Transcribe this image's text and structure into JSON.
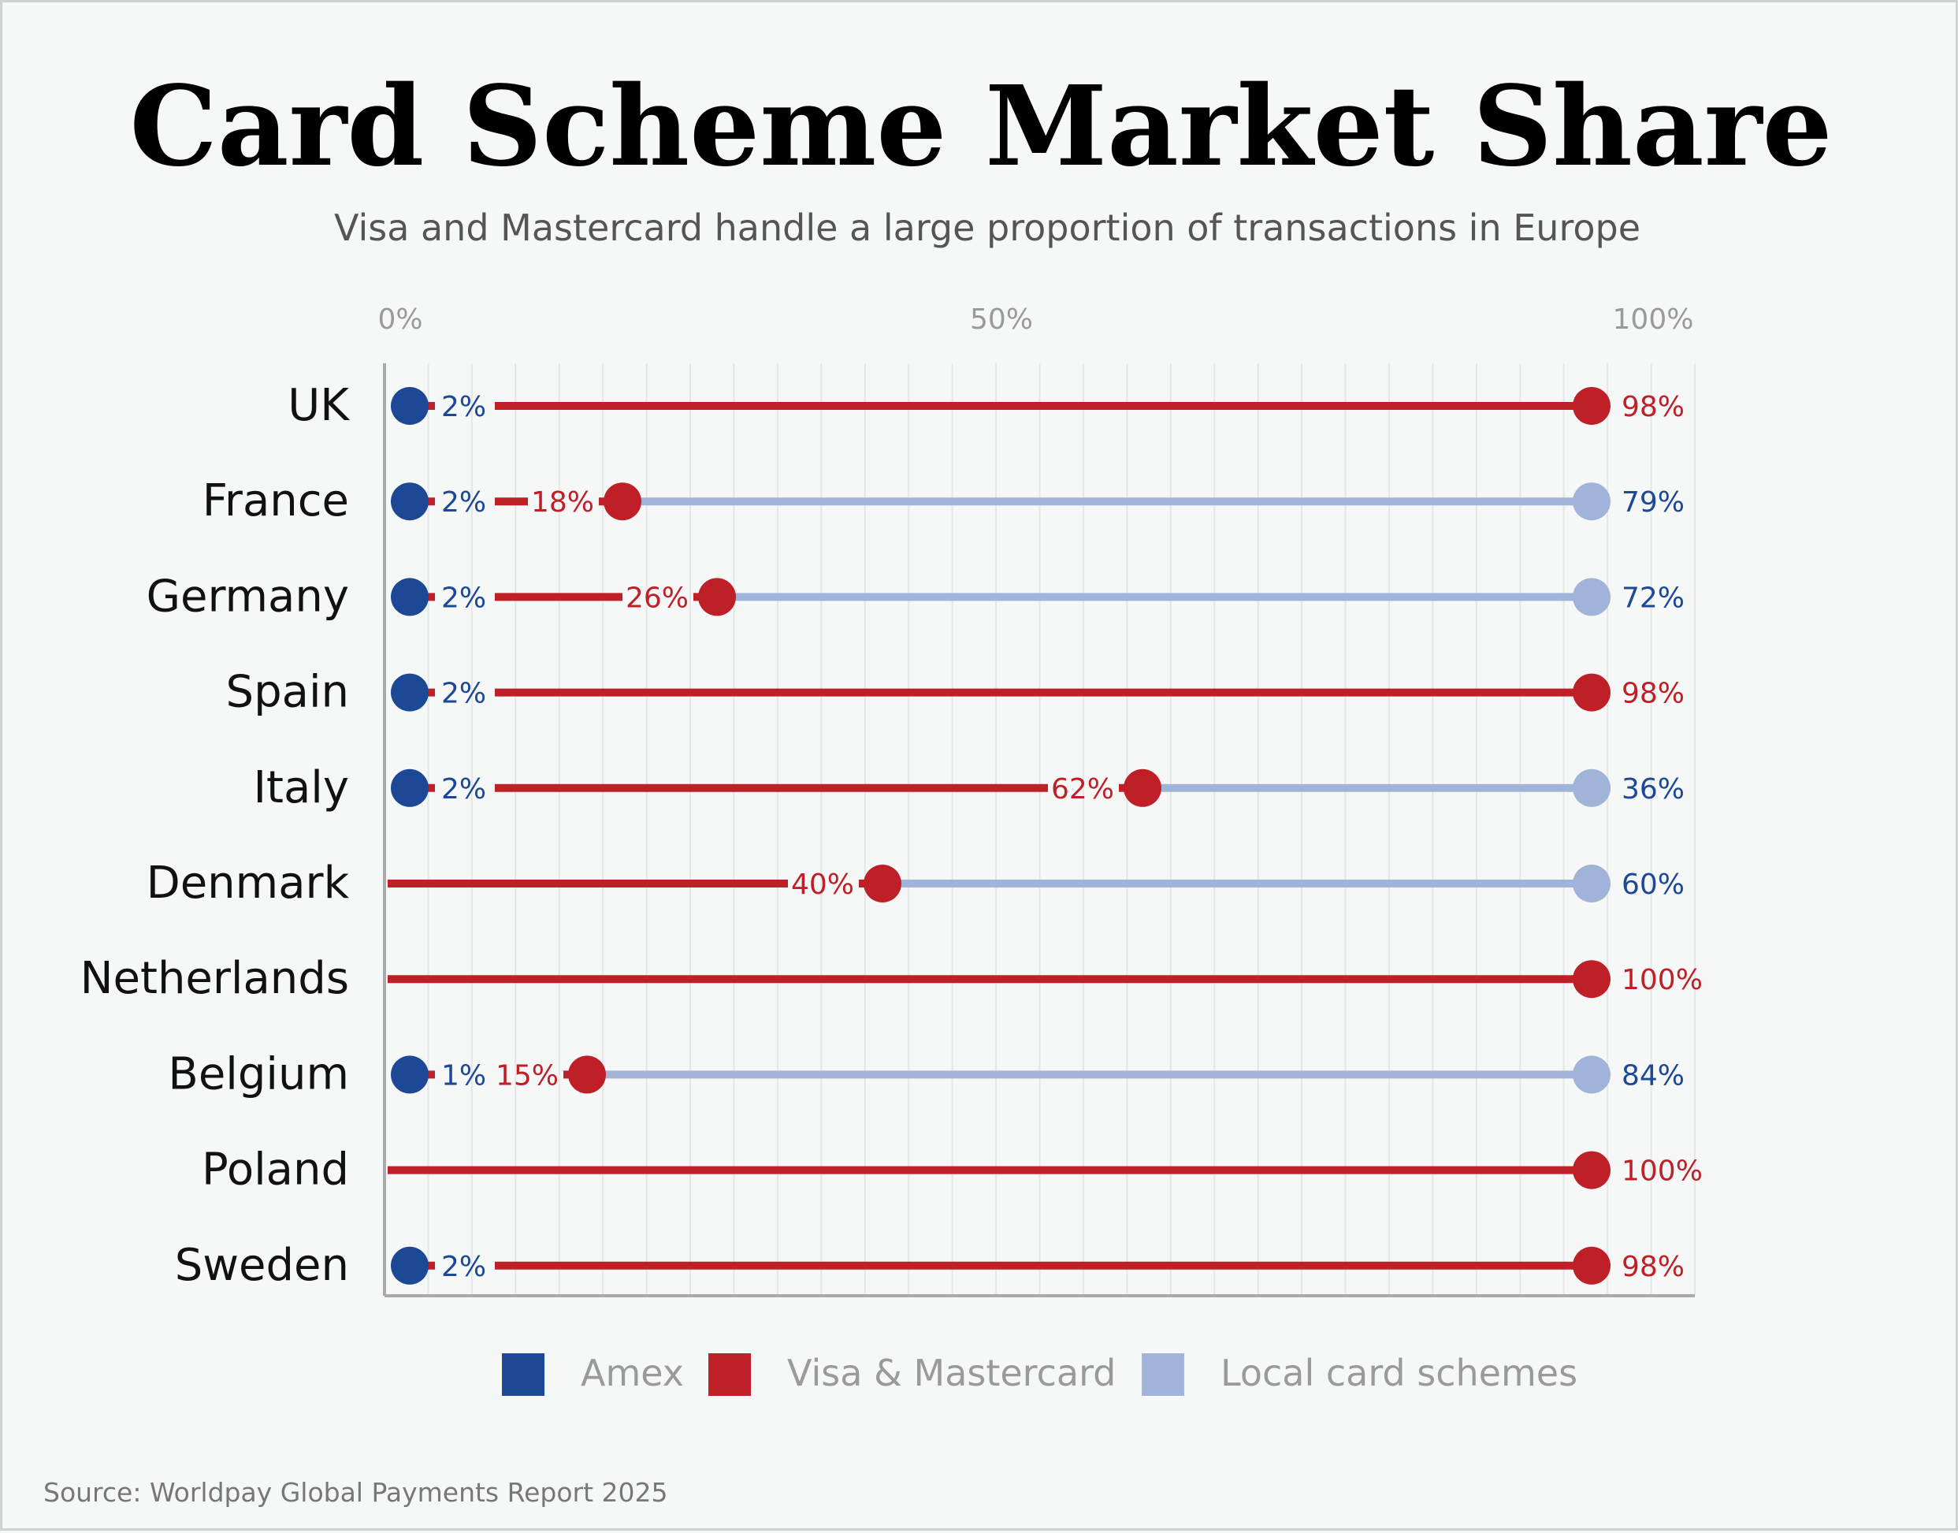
{
  "chart_data": {
    "type": "dumbbell",
    "title": "Card Scheme Market Share",
    "subtitle": "Visa and Mastercard handle a large proportion of transactions in Europe",
    "x_ticks": [
      "0%",
      "50%",
      "100%"
    ],
    "xlim": [
      0,
      100
    ],
    "grid": true,
    "legend_position": "bottom",
    "source": "Source: Worldpay Global Payments Report 2025",
    "colors": {
      "amex": "#1c4896",
      "visa_mc": "#bf1f27",
      "local": "#a0b3d9",
      "background": "#f6f8f7",
      "axis": "#aaaaaa",
      "grid": "#e5e7e6"
    },
    "legend": [
      {
        "key": "amex",
        "label": "Amex"
      },
      {
        "key": "visa_mc",
        "label": "Visa & Mastercard"
      },
      {
        "key": "local",
        "label": "Local card schemes"
      }
    ],
    "categories": [
      "UK",
      "France",
      "Germany",
      "Spain",
      "Italy",
      "Denmark",
      "Netherlands",
      "Belgium",
      "Poland",
      "Sweden"
    ],
    "series": [
      {
        "name": "Amex",
        "values": [
          2,
          2,
          2,
          2,
          2,
          null,
          null,
          1,
          null,
          2
        ],
        "labels": [
          "2%",
          "2%",
          "2%",
          "2%",
          "2%",
          null,
          null,
          "1%",
          null,
          "2%"
        ]
      },
      {
        "name": "Visa & Mastercard",
        "values": [
          98,
          18,
          26,
          98,
          62,
          40,
          100,
          15,
          100,
          98
        ],
        "labels": [
          "98%",
          "18%",
          "26%",
          "98%",
          "62%",
          "40%",
          "100%",
          "15%",
          "100%",
          "98%"
        ]
      },
      {
        "name": "Local card schemes",
        "values": [
          null,
          79,
          72,
          null,
          36,
          60,
          null,
          84,
          null,
          null
        ],
        "labels": [
          null,
          "79%",
          "72%",
          null,
          "36%",
          "60%",
          null,
          "84%",
          null,
          null
        ]
      }
    ]
  }
}
